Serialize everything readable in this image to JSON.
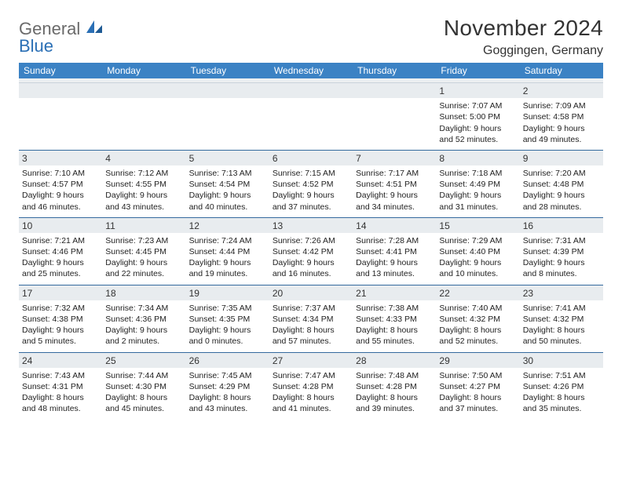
{
  "logo": {
    "word1": "General",
    "word2": "Blue"
  },
  "title": "November 2024",
  "location": "Goggingen, Germany",
  "weekdays": [
    "Sunday",
    "Monday",
    "Tuesday",
    "Wednesday",
    "Thursday",
    "Friday",
    "Saturday"
  ],
  "colors": {
    "header_bg": "#3b82c4",
    "header_text": "#ffffff",
    "daynum_bg": "#e8ecef",
    "week_border": "#346a9e",
    "text": "#222222",
    "logo_gray": "#6a6a6a",
    "logo_blue": "#2a6fb5"
  },
  "weeks": [
    [
      null,
      null,
      null,
      null,
      null,
      {
        "n": "1",
        "sr": "Sunrise: 7:07 AM",
        "ss": "Sunset: 5:00 PM",
        "d1": "Daylight: 9 hours",
        "d2": "and 52 minutes."
      },
      {
        "n": "2",
        "sr": "Sunrise: 7:09 AM",
        "ss": "Sunset: 4:58 PM",
        "d1": "Daylight: 9 hours",
        "d2": "and 49 minutes."
      }
    ],
    [
      {
        "n": "3",
        "sr": "Sunrise: 7:10 AM",
        "ss": "Sunset: 4:57 PM",
        "d1": "Daylight: 9 hours",
        "d2": "and 46 minutes."
      },
      {
        "n": "4",
        "sr": "Sunrise: 7:12 AM",
        "ss": "Sunset: 4:55 PM",
        "d1": "Daylight: 9 hours",
        "d2": "and 43 minutes."
      },
      {
        "n": "5",
        "sr": "Sunrise: 7:13 AM",
        "ss": "Sunset: 4:54 PM",
        "d1": "Daylight: 9 hours",
        "d2": "and 40 minutes."
      },
      {
        "n": "6",
        "sr": "Sunrise: 7:15 AM",
        "ss": "Sunset: 4:52 PM",
        "d1": "Daylight: 9 hours",
        "d2": "and 37 minutes."
      },
      {
        "n": "7",
        "sr": "Sunrise: 7:17 AM",
        "ss": "Sunset: 4:51 PM",
        "d1": "Daylight: 9 hours",
        "d2": "and 34 minutes."
      },
      {
        "n": "8",
        "sr": "Sunrise: 7:18 AM",
        "ss": "Sunset: 4:49 PM",
        "d1": "Daylight: 9 hours",
        "d2": "and 31 minutes."
      },
      {
        "n": "9",
        "sr": "Sunrise: 7:20 AM",
        "ss": "Sunset: 4:48 PM",
        "d1": "Daylight: 9 hours",
        "d2": "and 28 minutes."
      }
    ],
    [
      {
        "n": "10",
        "sr": "Sunrise: 7:21 AM",
        "ss": "Sunset: 4:46 PM",
        "d1": "Daylight: 9 hours",
        "d2": "and 25 minutes."
      },
      {
        "n": "11",
        "sr": "Sunrise: 7:23 AM",
        "ss": "Sunset: 4:45 PM",
        "d1": "Daylight: 9 hours",
        "d2": "and 22 minutes."
      },
      {
        "n": "12",
        "sr": "Sunrise: 7:24 AM",
        "ss": "Sunset: 4:44 PM",
        "d1": "Daylight: 9 hours",
        "d2": "and 19 minutes."
      },
      {
        "n": "13",
        "sr": "Sunrise: 7:26 AM",
        "ss": "Sunset: 4:42 PM",
        "d1": "Daylight: 9 hours",
        "d2": "and 16 minutes."
      },
      {
        "n": "14",
        "sr": "Sunrise: 7:28 AM",
        "ss": "Sunset: 4:41 PM",
        "d1": "Daylight: 9 hours",
        "d2": "and 13 minutes."
      },
      {
        "n": "15",
        "sr": "Sunrise: 7:29 AM",
        "ss": "Sunset: 4:40 PM",
        "d1": "Daylight: 9 hours",
        "d2": "and 10 minutes."
      },
      {
        "n": "16",
        "sr": "Sunrise: 7:31 AM",
        "ss": "Sunset: 4:39 PM",
        "d1": "Daylight: 9 hours",
        "d2": "and 8 minutes."
      }
    ],
    [
      {
        "n": "17",
        "sr": "Sunrise: 7:32 AM",
        "ss": "Sunset: 4:38 PM",
        "d1": "Daylight: 9 hours",
        "d2": "and 5 minutes."
      },
      {
        "n": "18",
        "sr": "Sunrise: 7:34 AM",
        "ss": "Sunset: 4:36 PM",
        "d1": "Daylight: 9 hours",
        "d2": "and 2 minutes."
      },
      {
        "n": "19",
        "sr": "Sunrise: 7:35 AM",
        "ss": "Sunset: 4:35 PM",
        "d1": "Daylight: 9 hours",
        "d2": "and 0 minutes."
      },
      {
        "n": "20",
        "sr": "Sunrise: 7:37 AM",
        "ss": "Sunset: 4:34 PM",
        "d1": "Daylight: 8 hours",
        "d2": "and 57 minutes."
      },
      {
        "n": "21",
        "sr": "Sunrise: 7:38 AM",
        "ss": "Sunset: 4:33 PM",
        "d1": "Daylight: 8 hours",
        "d2": "and 55 minutes."
      },
      {
        "n": "22",
        "sr": "Sunrise: 7:40 AM",
        "ss": "Sunset: 4:32 PM",
        "d1": "Daylight: 8 hours",
        "d2": "and 52 minutes."
      },
      {
        "n": "23",
        "sr": "Sunrise: 7:41 AM",
        "ss": "Sunset: 4:32 PM",
        "d1": "Daylight: 8 hours",
        "d2": "and 50 minutes."
      }
    ],
    [
      {
        "n": "24",
        "sr": "Sunrise: 7:43 AM",
        "ss": "Sunset: 4:31 PM",
        "d1": "Daylight: 8 hours",
        "d2": "and 48 minutes."
      },
      {
        "n": "25",
        "sr": "Sunrise: 7:44 AM",
        "ss": "Sunset: 4:30 PM",
        "d1": "Daylight: 8 hours",
        "d2": "and 45 minutes."
      },
      {
        "n": "26",
        "sr": "Sunrise: 7:45 AM",
        "ss": "Sunset: 4:29 PM",
        "d1": "Daylight: 8 hours",
        "d2": "and 43 minutes."
      },
      {
        "n": "27",
        "sr": "Sunrise: 7:47 AM",
        "ss": "Sunset: 4:28 PM",
        "d1": "Daylight: 8 hours",
        "d2": "and 41 minutes."
      },
      {
        "n": "28",
        "sr": "Sunrise: 7:48 AM",
        "ss": "Sunset: 4:28 PM",
        "d1": "Daylight: 8 hours",
        "d2": "and 39 minutes."
      },
      {
        "n": "29",
        "sr": "Sunrise: 7:50 AM",
        "ss": "Sunset: 4:27 PM",
        "d1": "Daylight: 8 hours",
        "d2": "and 37 minutes."
      },
      {
        "n": "30",
        "sr": "Sunrise: 7:51 AM",
        "ss": "Sunset: 4:26 PM",
        "d1": "Daylight: 8 hours",
        "d2": "and 35 minutes."
      }
    ]
  ]
}
